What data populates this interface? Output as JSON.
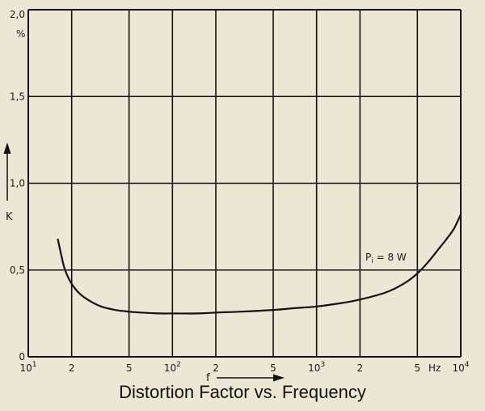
{
  "chart_data": {
    "type": "line",
    "title": "Distortion Factor vs. Frequency",
    "xlabel": "f",
    "xunit": "Hz",
    "ylabel": "K",
    "yunit": "%",
    "xscale": "log",
    "xlim": [
      10,
      10000
    ],
    "ylim": [
      0,
      2.0
    ],
    "grid": true,
    "x_ticks": [
      {
        "value": 10,
        "label": "10",
        "exp": "1"
      },
      {
        "value": 20,
        "label": "2"
      },
      {
        "value": 50,
        "label": "5"
      },
      {
        "value": 100,
        "label": "10",
        "exp": "2"
      },
      {
        "value": 200,
        "label": "2"
      },
      {
        "value": 500,
        "label": "5"
      },
      {
        "value": 1000,
        "label": "10",
        "exp": "3"
      },
      {
        "value": 2000,
        "label": "2"
      },
      {
        "value": 5000,
        "label": "5"
      },
      {
        "value": 10000,
        "label": "10",
        "exp": "4"
      }
    ],
    "y_ticks": [
      {
        "value": 0,
        "label": "0"
      },
      {
        "value": 0.5,
        "label": "0,5"
      },
      {
        "value": 1.0,
        "label": "1,0"
      },
      {
        "value": 1.5,
        "label": "1,5"
      },
      {
        "value": 2.0,
        "label": "2,0"
      }
    ],
    "annotation": {
      "text": "P",
      "sub": "i",
      "rest": " = 8 W"
    },
    "series": [
      {
        "x": [
          16,
          17,
          18,
          20,
          23,
          27,
          32,
          40,
          50,
          60,
          80,
          100,
          150,
          200,
          300,
          500,
          700,
          1000,
          1500,
          2000,
          3000,
          4000,
          5000,
          6000,
          7000,
          8000,
          9000,
          10000
        ],
        "y": [
          0.68,
          0.58,
          0.5,
          0.42,
          0.36,
          0.32,
          0.29,
          0.27,
          0.26,
          0.255,
          0.25,
          0.25,
          0.25,
          0.255,
          0.26,
          0.27,
          0.28,
          0.29,
          0.31,
          0.33,
          0.37,
          0.42,
          0.48,
          0.55,
          0.62,
          0.68,
          0.74,
          0.82
        ]
      }
    ]
  }
}
